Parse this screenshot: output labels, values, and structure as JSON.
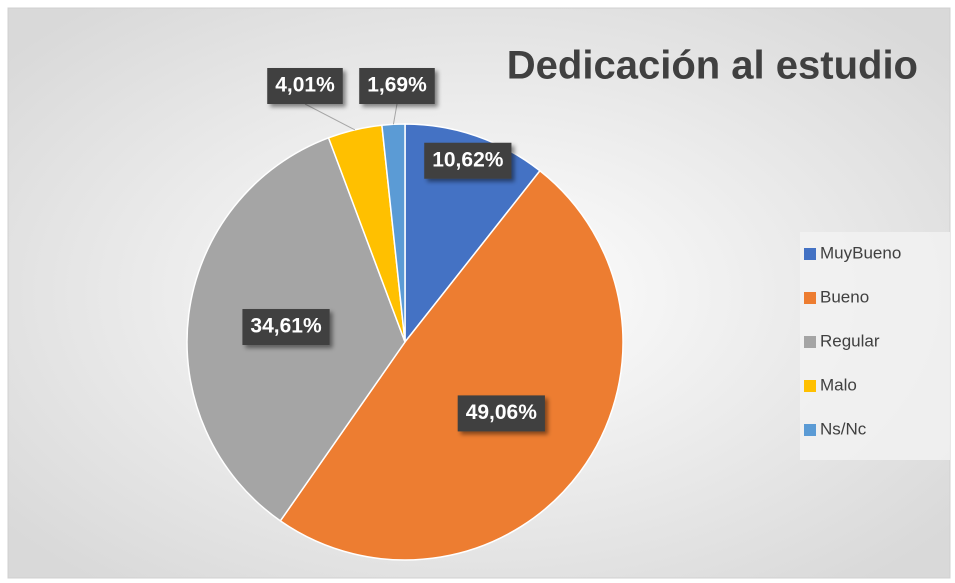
{
  "chart_data": {
    "type": "pie",
    "title": "Dedicación al estudio",
    "categories": [
      "MuyBueno",
      "Bueno",
      "Regular",
      "Malo",
      "Ns/Nc"
    ],
    "values": [
      10.62,
      49.06,
      34.61,
      4.01,
      1.69
    ],
    "value_labels": [
      "10,62%",
      "49,06%",
      "34,61%",
      "4,01%",
      "1,69%"
    ],
    "colors": [
      "#4472c4",
      "#ed7d31",
      "#a5a5a5",
      "#ffc000",
      "#5b9bd5"
    ],
    "legend": "right"
  }
}
